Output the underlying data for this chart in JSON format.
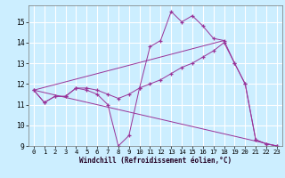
{
  "title": "",
  "xlabel": "Windchill (Refroidissement éolien,°C)",
  "ylabel": "",
  "bg_color": "#cceeff",
  "line_color": "#993399",
  "grid_color": "#ffffff",
  "xlim": [
    -0.5,
    23.5
  ],
  "ylim": [
    9,
    15.8
  ],
  "yticks": [
    9,
    10,
    11,
    12,
    13,
    14,
    15
  ],
  "xticks": [
    0,
    1,
    2,
    3,
    4,
    5,
    6,
    7,
    8,
    9,
    10,
    11,
    12,
    13,
    14,
    15,
    16,
    17,
    18,
    19,
    20,
    21,
    22,
    23
  ],
  "series": [
    {
      "x": [
        0,
        1,
        2,
        3,
        4,
        5,
        6,
        7,
        8,
        9,
        10,
        11,
        12,
        13,
        14,
        15,
        16,
        17,
        18,
        19,
        20,
        21,
        22,
        23
      ],
      "y": [
        11.7,
        11.1,
        11.4,
        11.4,
        11.8,
        11.7,
        11.5,
        11.0,
        9.0,
        9.5,
        11.8,
        13.8,
        14.1,
        15.5,
        15.0,
        15.3,
        14.8,
        14.2,
        14.1,
        13.0,
        12.0,
        9.3,
        9.1,
        9.0
      ],
      "marker": true
    },
    {
      "x": [
        0,
        1,
        2,
        3,
        4,
        5,
        6,
        7,
        8,
        9,
        10,
        11,
        12,
        13,
        14,
        15,
        16,
        17,
        18,
        19,
        20,
        21,
        22,
        23
      ],
      "y": [
        11.7,
        11.1,
        11.4,
        11.4,
        11.8,
        11.8,
        11.7,
        11.5,
        11.3,
        11.5,
        11.8,
        12.0,
        12.2,
        12.5,
        12.8,
        13.0,
        13.3,
        13.6,
        14.0,
        13.0,
        12.0,
        9.3,
        9.1,
        9.0
      ],
      "marker": true
    },
    {
      "x": [
        0,
        18
      ],
      "y": [
        11.7,
        14.1
      ],
      "marker": false
    },
    {
      "x": [
        0,
        23
      ],
      "y": [
        11.7,
        9.0
      ],
      "marker": false
    }
  ]
}
